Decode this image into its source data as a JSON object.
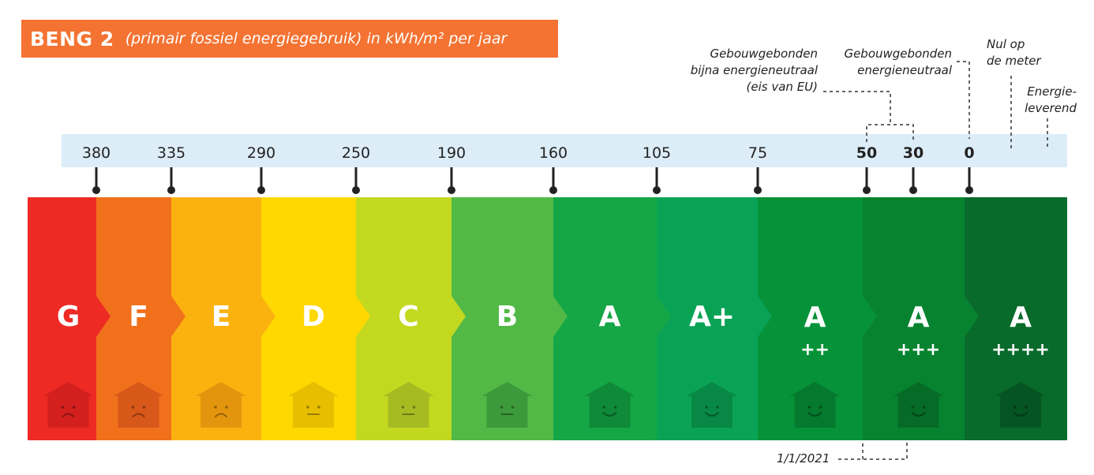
{
  "title": {
    "main": "BENG 2",
    "subtitle": "(primair fossiel energiegebruik) in kWh/m² per jaar"
  },
  "ticks": [
    {
      "label": "380",
      "bold": false
    },
    {
      "label": "335",
      "bold": false
    },
    {
      "label": "290",
      "bold": false
    },
    {
      "label": "250",
      "bold": false
    },
    {
      "label": "190",
      "bold": false
    },
    {
      "label": "160",
      "bold": false
    },
    {
      "label": "105",
      "bold": false
    },
    {
      "label": "75",
      "bold": false
    },
    {
      "label": "50",
      "bold": true
    },
    {
      "label": "30",
      "bold": true
    },
    {
      "label": "0",
      "bold": true
    }
  ],
  "classes": [
    {
      "letter": "G",
      "suffix": "",
      "color": "#ee2a24",
      "house": "#d41f1f",
      "face": "sad"
    },
    {
      "letter": "F",
      "suffix": "",
      "color": "#f1701c",
      "house": "#d8581a",
      "face": "sad"
    },
    {
      "letter": "E",
      "suffix": "",
      "color": "#fbb20f",
      "house": "#e3960d",
      "face": "sad"
    },
    {
      "letter": "D",
      "suffix": "",
      "color": "#fed800",
      "house": "#e8be00",
      "face": "neutral"
    },
    {
      "letter": "C",
      "suffix": "",
      "color": "#c2d91f",
      "house": "#a6bb22",
      "face": "neutral"
    },
    {
      "letter": "B",
      "suffix": "",
      "color": "#52b947",
      "house": "#3d9a3a",
      "face": "neutral"
    },
    {
      "letter": "A",
      "suffix": "",
      "color": "#15a645",
      "house": "#0f8a38",
      "face": "happy"
    },
    {
      "letter": "A+",
      "suffix": "",
      "color": "#0aa356",
      "house": "#088845",
      "face": "happy"
    },
    {
      "letter": "A",
      "suffix": "++",
      "color": "#069238",
      "house": "#05792d",
      "face": "happy"
    },
    {
      "letter": "A",
      "suffix": "+++",
      "color": "#078330",
      "house": "#066b27",
      "face": "happy"
    },
    {
      "letter": "A",
      "suffix": "++++",
      "color": "#086b2b",
      "house": "#055523",
      "face": "happy"
    }
  ],
  "annotations": {
    "eu_requirement": "Gebouwgebonden bijna energieneutraal (eis van EU)",
    "energy_neutral": "Gebouwgebonden energieneutraal",
    "zero_on_meter": "Nul op de meter",
    "energy_supplying": "Energie-leverend",
    "date": "1/1/2021"
  }
}
